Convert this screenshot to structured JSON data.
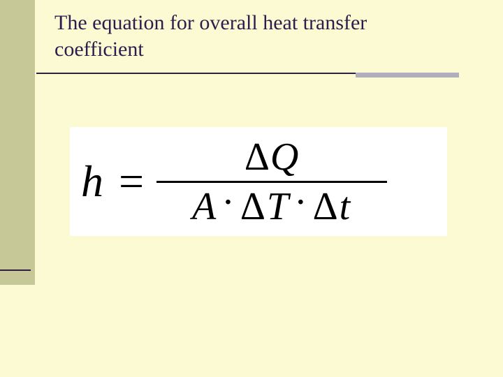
{
  "slide": {
    "title": "The equation for overall heat transfer coefficient",
    "background_color": "#fbfad2",
    "left_bar_color": "#c7c898",
    "rule_dark_color": "#2f1f40",
    "rule_light_color": "#b0aebc",
    "title_color": "#2f1b4d",
    "title_fontsize": 30
  },
  "equation": {
    "lhs": "h",
    "numerator": "ΔQ",
    "denominator": "A · ΔT · Δt",
    "box_background": "#ffffff",
    "text_color": "#000000",
    "lhs_fontsize": 64,
    "frac_fontsize": 56,
    "frac_line_width": 330
  }
}
